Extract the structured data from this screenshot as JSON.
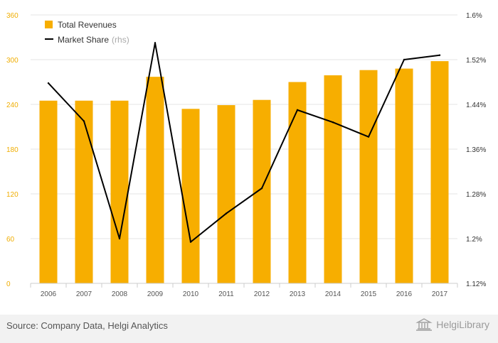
{
  "source_text": "Source: Company Data, Helgi Analytics",
  "logo_text": "HelgiLibrary",
  "colors": {
    "bar": "#f7ae00",
    "line": "#000000",
    "left_axis_text": "#f0ad00",
    "right_axis_text": "#333333",
    "grid": "#e6e6e6"
  },
  "chart_data": {
    "type": "bar",
    "categories": [
      "2006",
      "2007",
      "2008",
      "2009",
      "2010",
      "2011",
      "2012",
      "2013",
      "2014",
      "2015",
      "2016",
      "2017"
    ],
    "series": [
      {
        "name": "Total Revenues",
        "type": "bar",
        "axis": "left",
        "values": [
          245,
          245,
          245,
          277,
          234,
          239,
          246,
          270,
          279,
          286,
          288,
          298
        ]
      },
      {
        "name": "Market Share",
        "name_suffix": "(rhs)",
        "type": "line",
        "axis": "right",
        "values": [
          1.478,
          1.41,
          1.2,
          1.55,
          1.194,
          1.245,
          1.29,
          1.43,
          1.408,
          1.382,
          1.52,
          1.528
        ]
      }
    ],
    "left_axis": {
      "ylim": [
        0,
        360
      ],
      "ticks": [
        0,
        60,
        120,
        180,
        240,
        300,
        360
      ],
      "tick_labels": [
        "0",
        "60",
        "120",
        "180",
        "240",
        "300",
        "360"
      ]
    },
    "right_axis": {
      "ylim": [
        1.12,
        1.6
      ],
      "ticks": [
        1.12,
        1.2,
        1.28,
        1.36,
        1.44,
        1.52,
        1.6
      ],
      "tick_labels": [
        "1.12%",
        "1.2%",
        "1.28%",
        "1.36%",
        "1.44%",
        "1.52%",
        "1.6%"
      ]
    },
    "grid": true,
    "legend_position": "top-left"
  }
}
